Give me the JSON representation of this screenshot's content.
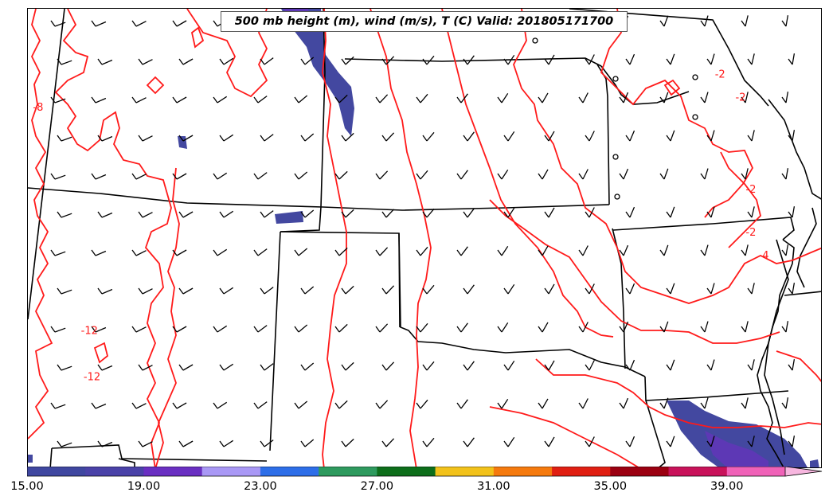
{
  "title": "500 mb height (m), wind (m/s), T (C) Valid: 201805171700",
  "colorbar": {
    "min": 15,
    "max": 43,
    "step": 2,
    "colors": [
      "#3f47a0",
      "#4a42a8",
      "#6a2fc2",
      "#a998f5",
      "#2d6ee8",
      "#2e9a5e",
      "#0d6e1a",
      "#f2c21a",
      "#f57a0e",
      "#e01f12",
      "#9b0011",
      "#c8125a",
      "#f062b8",
      "#f7b6df"
    ],
    "tick_labels": [
      "15.00",
      "19.00",
      "23.00",
      "27.00",
      "31.00",
      "35.00",
      "39.00"
    ],
    "tick_values": [
      15,
      19,
      23,
      27,
      31,
      35,
      39
    ]
  },
  "contour_labels": [
    {
      "text": "-8",
      "lon": -116.6,
      "lat": 42.4
    },
    {
      "text": "-12",
      "lon": -114.6,
      "lat": 35.6
    },
    {
      "text": "-12",
      "lon": -114.5,
      "lat": 34.2
    },
    {
      "text": "-2",
      "lon": -90.0,
      "lat": 43.4
    },
    {
      "text": "-2",
      "lon": -89.2,
      "lat": 42.7
    },
    {
      "text": "-2",
      "lon": -88.8,
      "lat": 39.9
    },
    {
      "text": "-2",
      "lon": -88.8,
      "lat": 38.6
    },
    {
      "text": "-4",
      "lon": -88.3,
      "lat": 37.9
    }
  ],
  "colors": {
    "contour": "#ff1a1a",
    "border": "#000000",
    "barb": "#000000",
    "shade": "#3f47a0"
  }
}
